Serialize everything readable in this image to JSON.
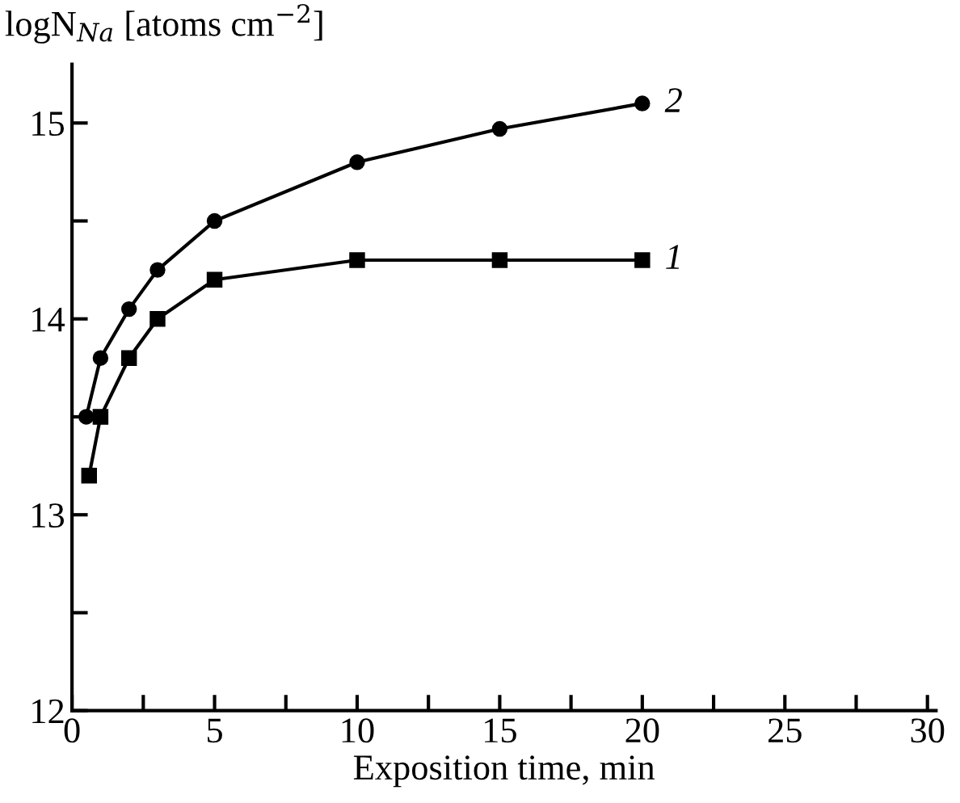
{
  "chart_data": {
    "type": "line",
    "xlabel": "Exposition time, min",
    "ylabel": "logN$_{Na}$ [atoms cm$^{−2}$]",
    "xlim": [
      0,
      30.3
    ],
    "ylim": [
      12,
      15.3
    ],
    "xticks": [
      0,
      {
        "value": 2.5,
        "label": null
      },
      5,
      {
        "value": 7.5,
        "label": null
      },
      10,
      {
        "value": 12.5,
        "label": null
      },
      15,
      {
        "value": 17.5,
        "label": null
      },
      20,
      {
        "value": 22.5,
        "label": null
      },
      25,
      {
        "value": 27.5,
        "label": null
      },
      30
    ],
    "yticks": [
      12,
      {
        "value": 12.5,
        "label": null
      },
      13,
      {
        "value": 13.5,
        "label": null
      },
      14,
      {
        "value": 14.5,
        "label": null
      },
      15
    ],
    "grid": false,
    "legend": false,
    "line_style": "solid",
    "series": [
      {
        "name": "1",
        "color": "#000000",
        "marker": "square",
        "x": [
          0.6,
          1,
          2,
          3,
          5,
          10,
          15,
          20
        ],
        "values": [
          13.2,
          13.5,
          13.8,
          14.0,
          14.2,
          14.3,
          14.3,
          14.3
        ]
      },
      {
        "name": "2",
        "color": "#000000",
        "marker": "circle",
        "x": [
          0.5,
          1,
          2,
          3,
          5,
          10,
          15,
          20
        ],
        "values": [
          13.5,
          13.8,
          14.05,
          14.25,
          14.5,
          14.8,
          14.97,
          15.1
        ]
      }
    ]
  }
}
